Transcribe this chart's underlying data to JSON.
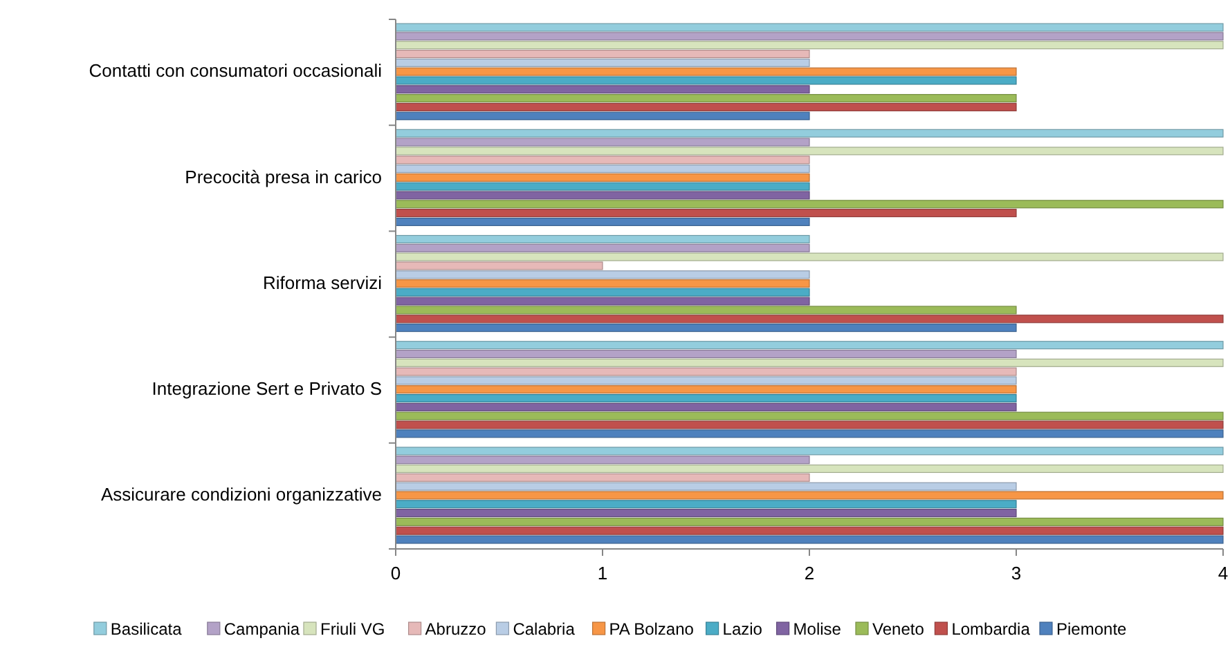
{
  "chart_data": {
    "type": "bar",
    "orientation": "horizontal",
    "categories": [
      "Contatti con consumatori occasionali",
      "Precocità presa in carico",
      "Riforma servizi",
      "Integrazione Sert e Privato S",
      "Assicurare condizioni organizzative"
    ],
    "series": [
      {
        "name": "Basilicata",
        "color": "#93cddd",
        "values": [
          4,
          4,
          2,
          4,
          4
        ]
      },
      {
        "name": "Campania",
        "color": "#b3a2c7",
        "values": [
          4,
          2,
          2,
          3,
          2
        ]
      },
      {
        "name": "Friuli VG",
        "color": "#d7e4bd",
        "values": [
          4,
          4,
          4,
          4,
          4
        ]
      },
      {
        "name": "Abruzzo",
        "color": "#e6b9b8",
        "values": [
          2,
          2,
          1,
          3,
          2
        ]
      },
      {
        "name": "Calabria",
        "color": "#b9cde5",
        "values": [
          2,
          2,
          2,
          3,
          3
        ]
      },
      {
        "name": "PA Bolzano",
        "color": "#f79646",
        "values": [
          3,
          2,
          2,
          3,
          4
        ]
      },
      {
        "name": "Lazio",
        "color": "#4bacc6",
        "values": [
          3,
          2,
          2,
          3,
          3
        ]
      },
      {
        "name": "Molise",
        "color": "#8064a2",
        "values": [
          2,
          2,
          2,
          3,
          3
        ]
      },
      {
        "name": "Veneto",
        "color": "#9bbb59",
        "values": [
          3,
          4,
          3,
          4,
          4
        ]
      },
      {
        "name": "Lombardia",
        "color": "#c0504d",
        "values": [
          3,
          3,
          4,
          4,
          4
        ]
      },
      {
        "name": "Piemonte",
        "color": "#4f81bd",
        "values": [
          2,
          2,
          3,
          4,
          4
        ]
      }
    ],
    "xlim": [
      0,
      4
    ],
    "xticks": [
      0,
      1,
      2,
      3,
      4
    ],
    "grid": false,
    "legend": "bottom"
  }
}
